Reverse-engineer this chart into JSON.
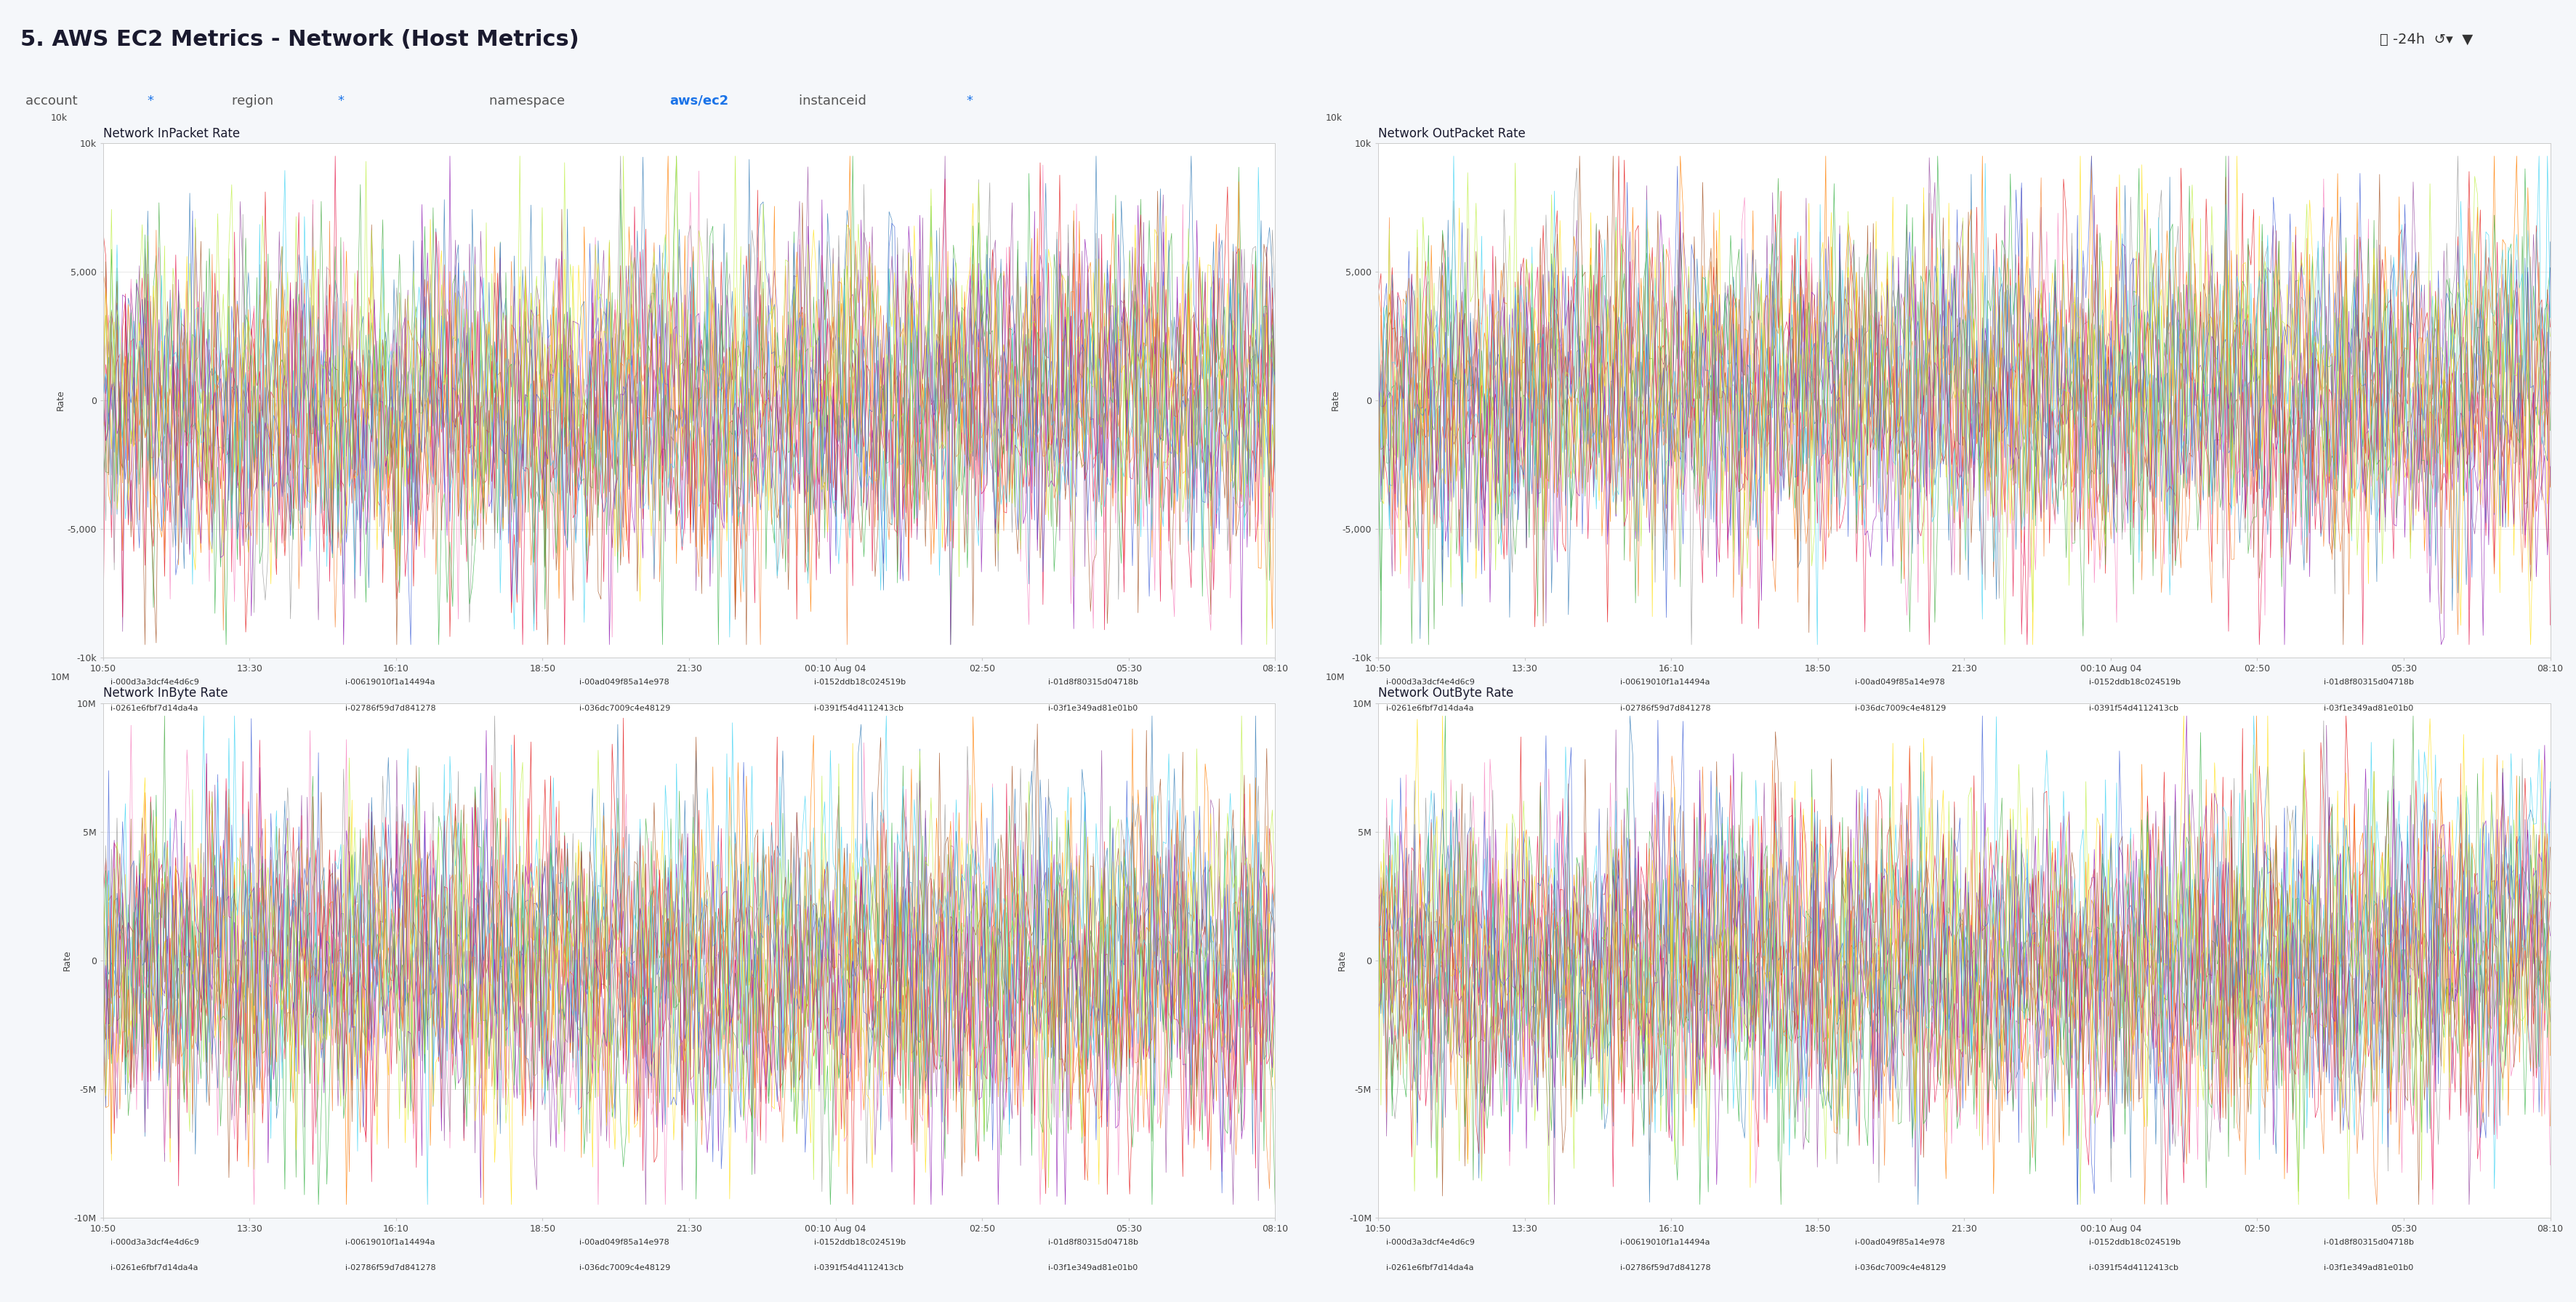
{
  "title": "5. AWS EC2 Metrics - Network (Host Metrics)",
  "header_bg": "#b0c4d8",
  "filter_bar_bg": "#f0f4f8",
  "panel_bg": "#ffffff",
  "top_bar_items": [
    "account *",
    "region *",
    "namespace aws/ec2",
    "instanceid *"
  ],
  "panels": [
    {
      "title": "Network InPacket Rate",
      "ylim": [
        -10000,
        10000
      ],
      "yticks": [
        -10000,
        -5000,
        0,
        5000,
        10000
      ],
      "ytick_labels": [
        "-10k",
        "-5,000",
        "0",
        "5,000",
        "10k"
      ]
    },
    {
      "title": "Network OutPacket Rate",
      "ylim": [
        -10000,
        10000
      ],
      "yticks": [
        -10000,
        -5000,
        0,
        5000,
        10000
      ],
      "ytick_labels": [
        "-10k",
        "-5,000",
        "0",
        "5,000",
        "10k"
      ]
    },
    {
      "title": "Network InByte Rate",
      "ylim": [
        -10000000,
        10000000
      ],
      "yticks": [
        -10000000,
        -5000000,
        0,
        5000000,
        10000000
      ],
      "ytick_labels": [
        "-10M",
        "-5M",
        "0",
        "5M",
        "10M"
      ]
    },
    {
      "title": "Network OutByte Rate",
      "ylim": [
        -10000000,
        10000000
      ],
      "yticks": [
        -10000000,
        -5000000,
        0,
        5000000,
        10000000
      ],
      "ytick_labels": [
        "-10M",
        "-5M",
        "0",
        "5M",
        "10M"
      ]
    }
  ],
  "xtick_labels": [
    "10:50",
    "13:30",
    "16:10",
    "18:50",
    "21:30",
    "00:10 Aug 04",
    "02:50",
    "05:30",
    "08:10"
  ],
  "ylabel": "Rate",
  "series_colors": [
    "#e41a1c",
    "#377eb8",
    "#4daf4a",
    "#984ea3",
    "#ff7f00",
    "#a65628",
    "#f781bf",
    "#999999",
    "#e6194b",
    "#3cb44b",
    "#ffe119",
    "#4363d8",
    "#f58231",
    "#911eb4",
    "#42d4f4",
    "#bfef45"
  ],
  "legend_entries": [
    "i-000d3a3dcf4e4d6c9",
    "i-00619010f1a14494a",
    "i-00ad049f85a14e978",
    "i-0152ddb18c024519b",
    "i-01d8f80315d04718b",
    "i-0261e6fbf7d14da4a",
    "i-02786f59d7d841278",
    "i-036dc7009c4e48129",
    "i-0391f54d4112413cb",
    "i-03f1e349ad81e01b0"
  ],
  "legend_colors": [
    "#e41a1c",
    "#377eb8",
    "#4daf4a",
    "#984ea3",
    "#ff7f00",
    "#a65628",
    "#f781bf",
    "#999999",
    "#e6194b",
    "#3cb44b"
  ]
}
